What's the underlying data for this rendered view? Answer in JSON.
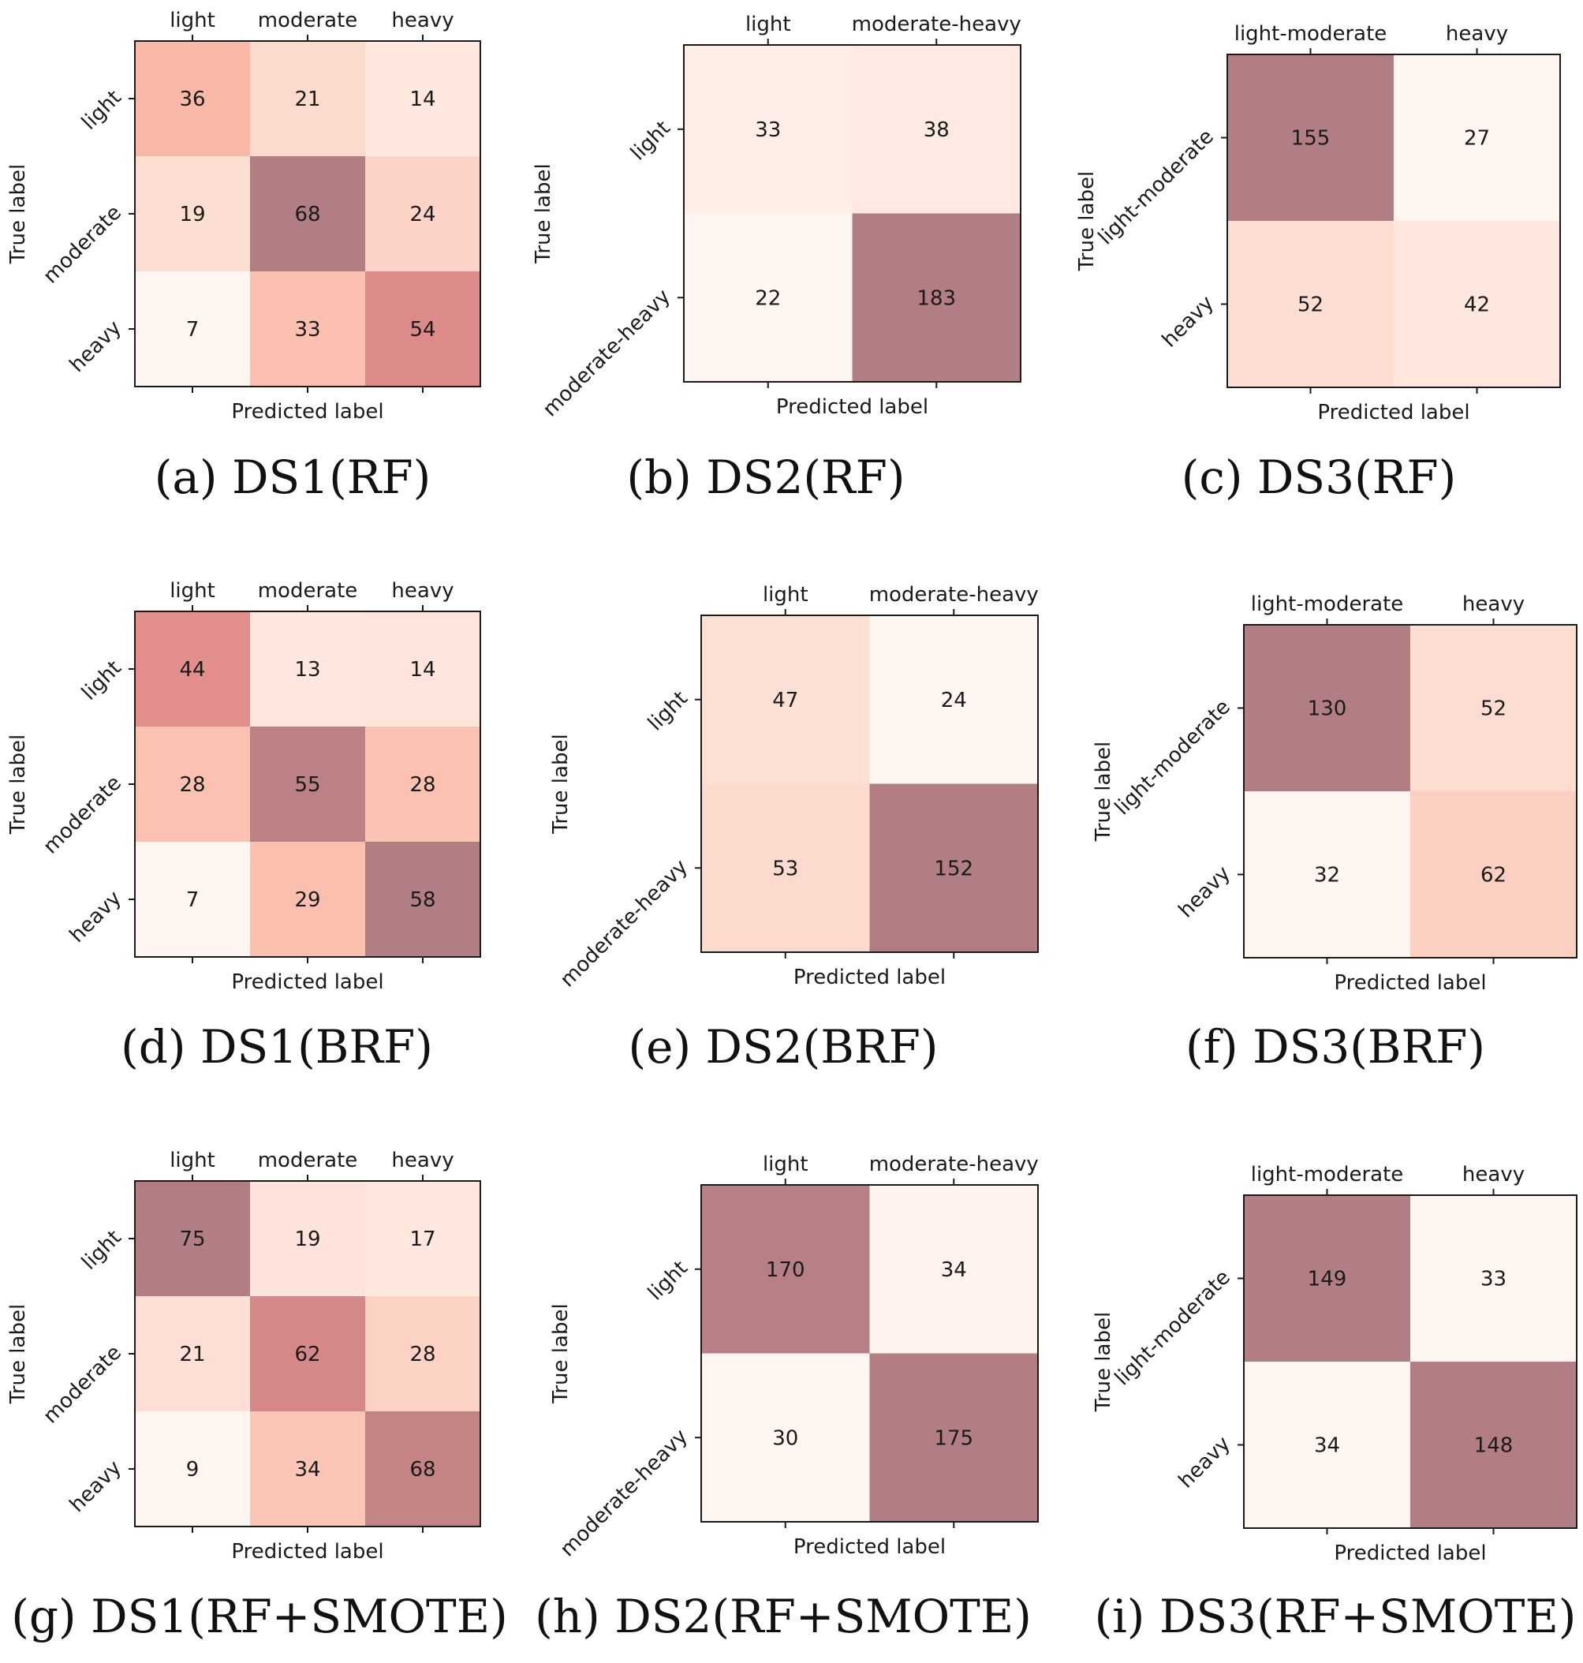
{
  "chart_data": [
    {
      "type": "heatmap",
      "caption": "(a) DS1(RF)",
      "xlabel": "Predicted label",
      "ylabel": "True label",
      "x_categories": [
        "light",
        "moderate",
        "heavy"
      ],
      "y_categories": [
        "light",
        "moderate",
        "heavy"
      ],
      "values": [
        [
          36,
          21,
          14
        ],
        [
          19,
          68,
          24
        ],
        [
          7,
          33,
          54
        ]
      ]
    },
    {
      "type": "heatmap",
      "caption": "(b) DS2(RF)",
      "xlabel": "Predicted label",
      "ylabel": "True label",
      "x_categories": [
        "light",
        "moderate-heavy"
      ],
      "y_categories": [
        "light",
        "moderate-heavy"
      ],
      "values": [
        [
          33,
          38
        ],
        [
          22,
          183
        ]
      ]
    },
    {
      "type": "heatmap",
      "caption": "(c) DS3(RF)",
      "xlabel": "Predicted label",
      "ylabel": "True label",
      "x_categories": [
        "light-moderate",
        "heavy"
      ],
      "y_categories": [
        "light-moderate",
        "heavy"
      ],
      "values": [
        [
          155,
          27
        ],
        [
          52,
          42
        ]
      ]
    },
    {
      "type": "heatmap",
      "caption": "(d) DS1(BRF)",
      "xlabel": "Predicted label",
      "ylabel": "True label",
      "x_categories": [
        "light",
        "moderate",
        "heavy"
      ],
      "y_categories": [
        "light",
        "moderate",
        "heavy"
      ],
      "values": [
        [
          44,
          13,
          14
        ],
        [
          28,
          55,
          28
        ],
        [
          7,
          29,
          58
        ]
      ]
    },
    {
      "type": "heatmap",
      "caption": "(e) DS2(BRF)",
      "xlabel": "Predicted label",
      "ylabel": "True label",
      "x_categories": [
        "light",
        "moderate-heavy"
      ],
      "y_categories": [
        "light",
        "moderate-heavy"
      ],
      "values": [
        [
          47,
          24
        ],
        [
          53,
          152
        ]
      ]
    },
    {
      "type": "heatmap",
      "caption": "(f) DS3(BRF)",
      "xlabel": "Predicted label",
      "ylabel": "True label",
      "x_categories": [
        "light-moderate",
        "heavy"
      ],
      "y_categories": [
        "light-moderate",
        "heavy"
      ],
      "values": [
        [
          130,
          52
        ],
        [
          32,
          62
        ]
      ]
    },
    {
      "type": "heatmap",
      "caption": "(g) DS1(RF+SMOTE)",
      "xlabel": "Predicted label",
      "ylabel": "True label",
      "x_categories": [
        "light",
        "moderate",
        "heavy"
      ],
      "y_categories": [
        "light",
        "moderate",
        "heavy"
      ],
      "values": [
        [
          75,
          19,
          17
        ],
        [
          21,
          62,
          28
        ],
        [
          9,
          34,
          68
        ]
      ]
    },
    {
      "type": "heatmap",
      "caption": "(h) DS2(RF+SMOTE)",
      "xlabel": "Predicted label",
      "ylabel": "True label",
      "x_categories": [
        "light",
        "moderate-heavy"
      ],
      "y_categories": [
        "light",
        "moderate-heavy"
      ],
      "values": [
        [
          170,
          34
        ],
        [
          30,
          175
        ]
      ]
    },
    {
      "type": "heatmap",
      "caption": "(i) DS3(RF+SMOTE)",
      "xlabel": "Predicted label",
      "ylabel": "True label",
      "x_categories": [
        "light-moderate",
        "heavy"
      ],
      "y_categories": [
        "light-moderate",
        "heavy"
      ],
      "values": [
        [
          149,
          33
        ],
        [
          34,
          148
        ]
      ]
    }
  ],
  "colors": {
    "scale_low": "#fff6f2",
    "scale_mid1": "#fcd7ca",
    "scale_mid2": "#fab6a3",
    "scale_mid3": "#e08b8b",
    "scale_high": "#b07e83",
    "frame": "#1a1a1a",
    "text": "#1a1a1a"
  }
}
